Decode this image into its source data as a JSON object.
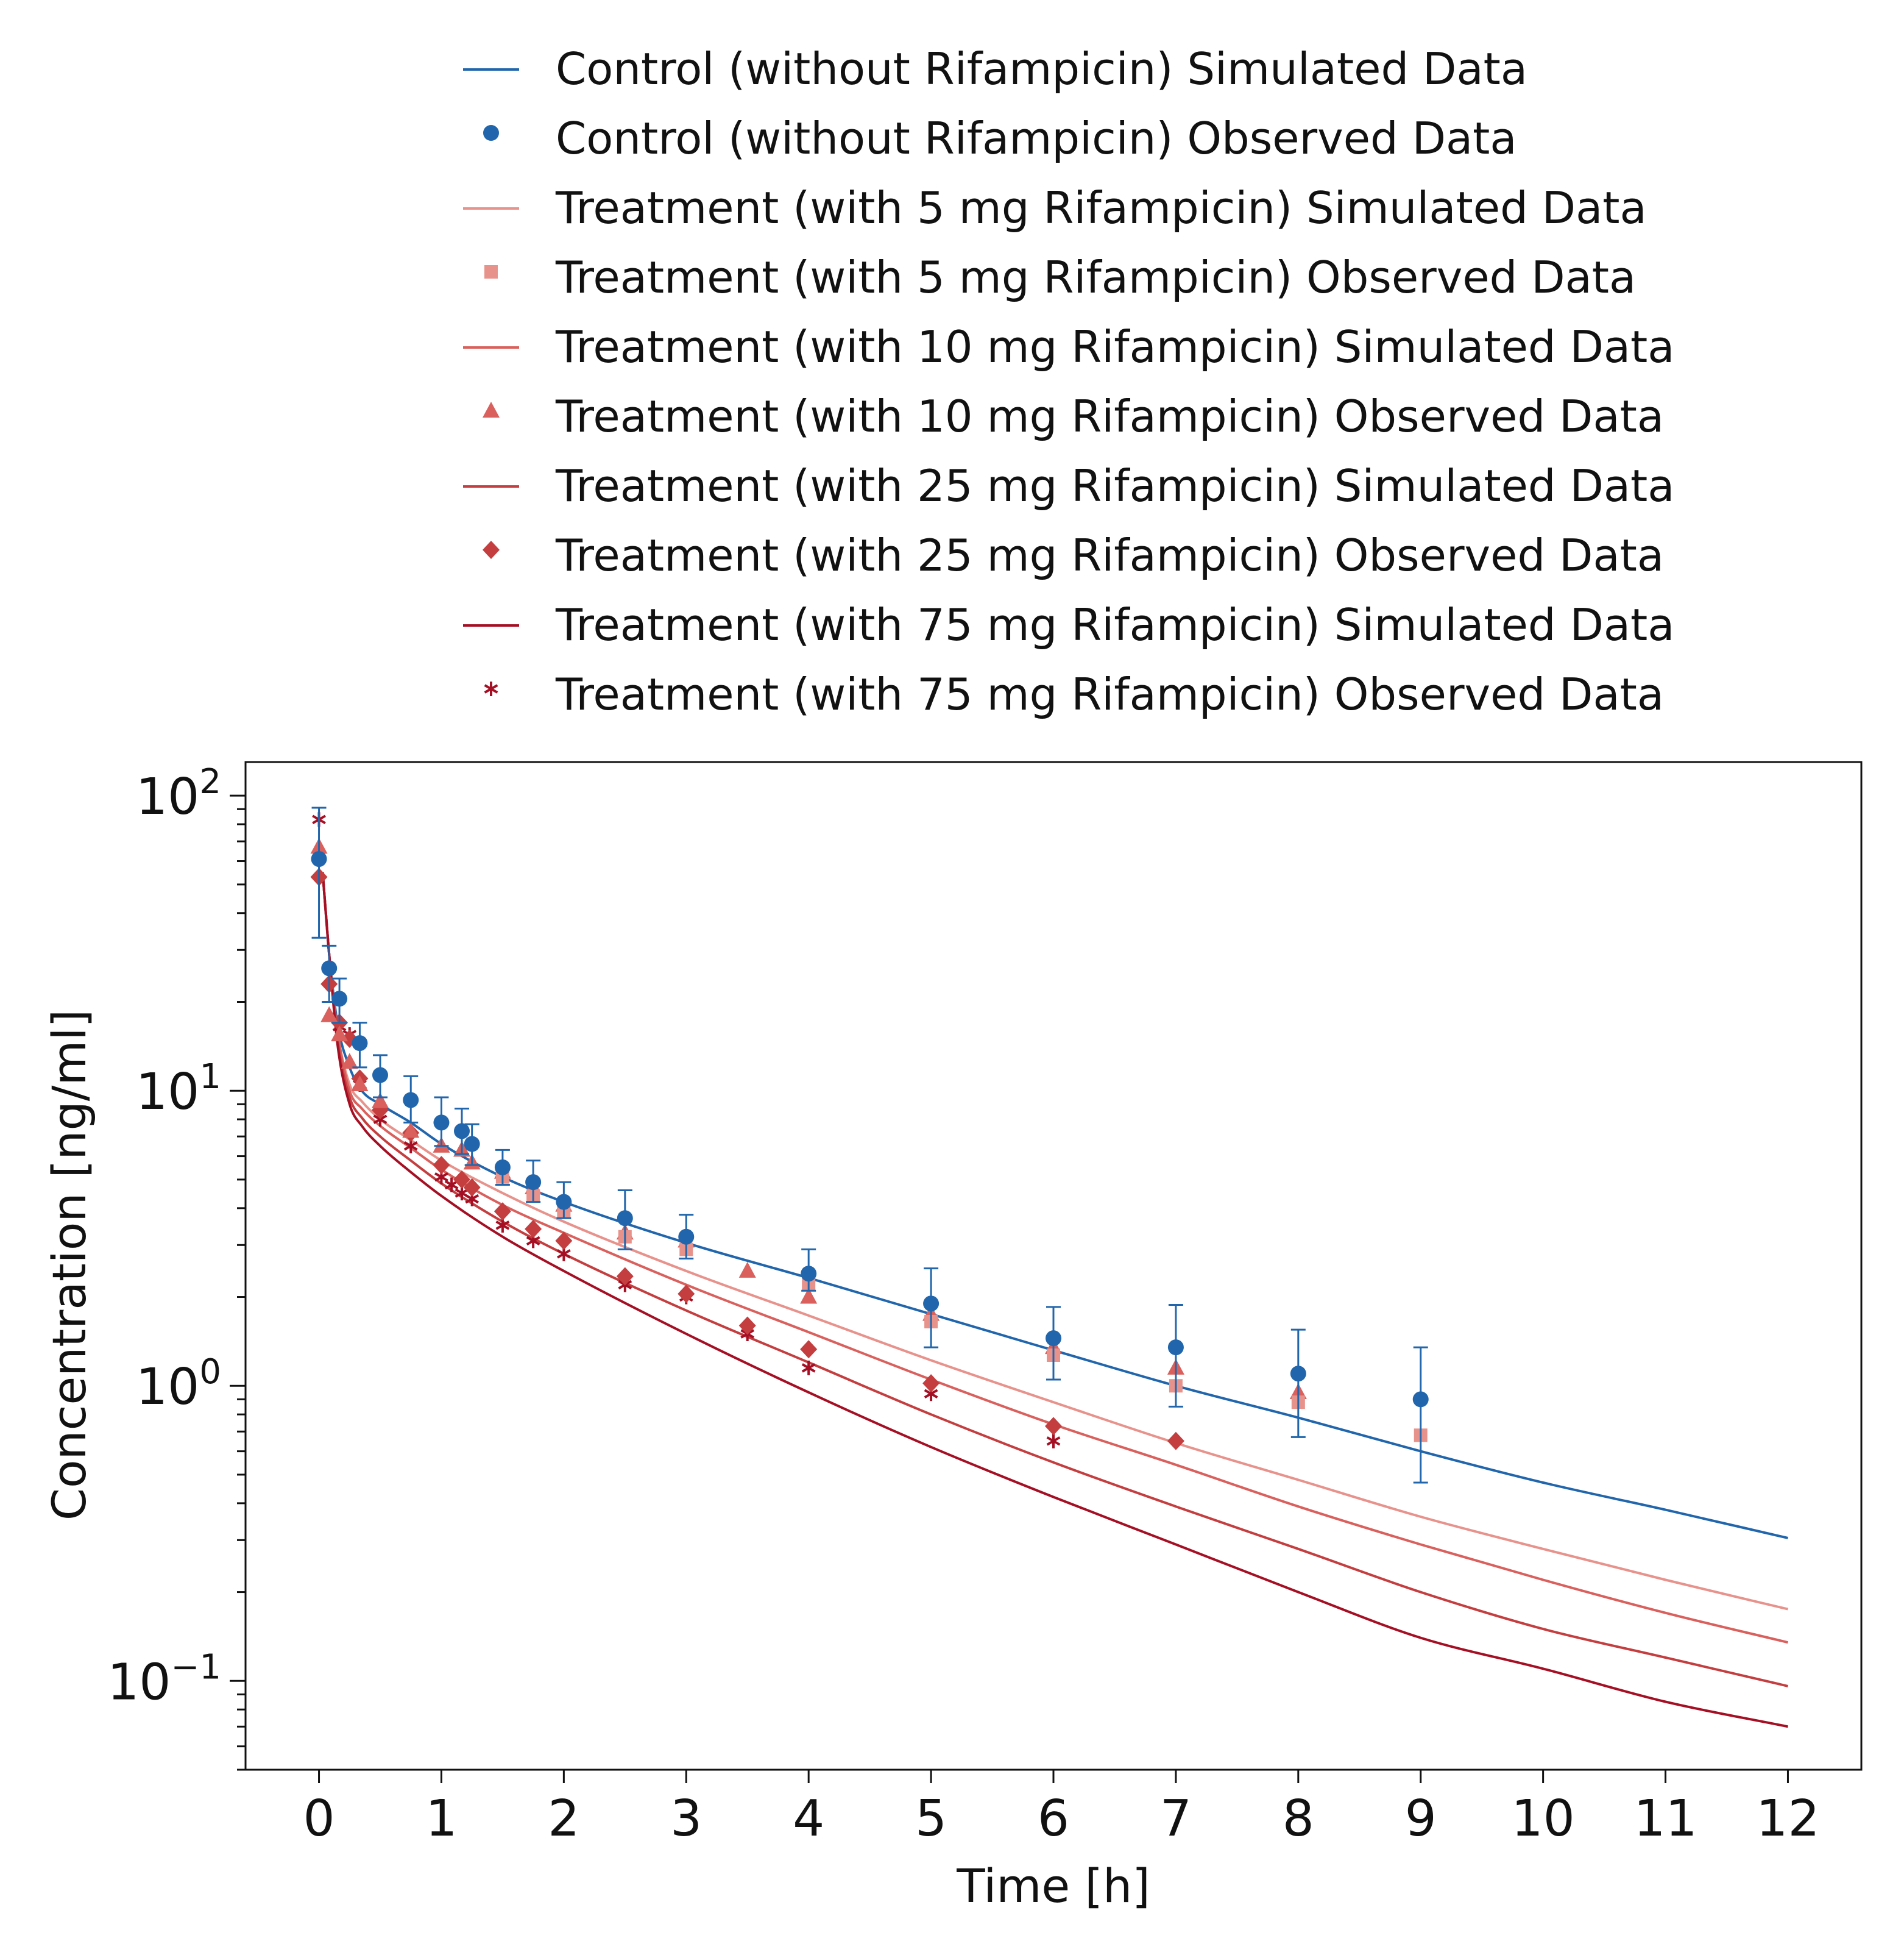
{
  "chart_data": {
    "type": "line",
    "xlabel": "Time [h]",
    "ylabel": "Concentration [ng/ml]",
    "x_scale": "linear",
    "y_scale": "log",
    "xlim": [
      -0.6,
      12.6
    ],
    "ylim": [
      0.05,
      130
    ],
    "x_ticks": [
      "0",
      "1",
      "2",
      "3",
      "4",
      "5",
      "6",
      "7",
      "8",
      "9",
      "10",
      "11",
      "12"
    ],
    "y_ticks": [
      {
        "value": 0.1,
        "base": "10",
        "exp": "−1"
      },
      {
        "value": 1,
        "base": "10",
        "exp": "0"
      },
      {
        "value": 10,
        "base": "10",
        "exp": "1"
      },
      {
        "value": 100,
        "base": "10",
        "exp": "2"
      }
    ],
    "grid": false,
    "legend_position": "top",
    "legend": [
      {
        "label": "Control (without Rifampicin) Simulated Data",
        "kind": "line",
        "color": "#2166ac"
      },
      {
        "label": "Control (without Rifampicin) Observed Data",
        "kind": "circle",
        "color": "#2166ac"
      },
      {
        "label": "Treatment (with 5 mg Rifampicin) Simulated Data",
        "kind": "line",
        "color": "#e8928c"
      },
      {
        "label": "Treatment (with 5 mg Rifampicin) Observed Data",
        "kind": "square",
        "color": "#e8928c"
      },
      {
        "label": "Treatment (with 10 mg Rifampicin) Simulated Data",
        "kind": "line",
        "color": "#d9605c"
      },
      {
        "label": "Treatment (with 10 mg Rifampicin) Observed Data",
        "kind": "triangle",
        "color": "#d9605c"
      },
      {
        "label": "Treatment (with 25 mg Rifampicin) Simulated Data",
        "kind": "line",
        "color": "#c43e3f"
      },
      {
        "label": "Treatment (with 25 mg Rifampicin) Observed Data",
        "kind": "diamond",
        "color": "#c43e3f"
      },
      {
        "label": "Treatment (with 75 mg Rifampicin) Simulated Data",
        "kind": "line",
        "color": "#a50f23"
      },
      {
        "label": "Treatment (with 75 mg Rifampicin) Observed Data",
        "kind": "star",
        "color": "#a50f23"
      }
    ],
    "simulated": [
      {
        "name": "Control (without Rifampicin) Simulated Data",
        "color": "#2166ac",
        "x": [
          0.03,
          0.08,
          0.15,
          0.25,
          0.35,
          0.5,
          0.75,
          1,
          1.5,
          2,
          3,
          4,
          5,
          6,
          7,
          8,
          9,
          10,
          11,
          12
        ],
        "y": [
          55,
          30,
          17,
          12,
          10,
          9,
          7.8,
          6.6,
          5.1,
          4.2,
          3.05,
          2.32,
          1.75,
          1.32,
          1.0,
          0.78,
          0.6,
          0.47,
          0.38,
          0.305
        ]
      },
      {
        "name": "Treatment (with 5 mg Rifampicin) Simulated Data",
        "color": "#e8928c",
        "x": [
          0.03,
          0.08,
          0.15,
          0.25,
          0.35,
          0.5,
          0.75,
          1,
          1.5,
          2,
          3,
          4,
          5,
          6,
          7,
          8,
          9,
          10,
          11,
          12
        ],
        "y": [
          55,
          30,
          16,
          10.5,
          9.2,
          8,
          6.8,
          5.8,
          4.5,
          3.6,
          2.45,
          1.73,
          1.22,
          0.88,
          0.64,
          0.48,
          0.36,
          0.28,
          0.22,
          0.175
        ]
      },
      {
        "name": "Treatment (with 10 mg Rifampicin) Simulated Data",
        "color": "#d9605c",
        "x": [
          0.03,
          0.08,
          0.15,
          0.25,
          0.35,
          0.5,
          0.75,
          1,
          1.5,
          2,
          3,
          4,
          5,
          6,
          7,
          8,
          9,
          10,
          11,
          12
        ],
        "y": [
          55,
          30,
          16,
          10,
          8.7,
          7.6,
          6.4,
          5.4,
          4.1,
          3.3,
          2.2,
          1.52,
          1.05,
          0.74,
          0.54,
          0.39,
          0.29,
          0.22,
          0.17,
          0.135
        ]
      },
      {
        "name": "Treatment (with 25 mg Rifampicin) Simulated Data",
        "color": "#c43e3f",
        "x": [
          0.03,
          0.08,
          0.15,
          0.25,
          0.35,
          0.5,
          0.75,
          1,
          1.5,
          2,
          3,
          4,
          5,
          6,
          7,
          8,
          9,
          10,
          11,
          12
        ],
        "y": [
          55,
          30,
          15,
          9.5,
          8.1,
          7,
          5.8,
          4.85,
          3.6,
          2.8,
          1.8,
          1.2,
          0.8,
          0.55,
          0.39,
          0.28,
          0.2,
          0.15,
          0.12,
          0.096
        ]
      },
      {
        "name": "Treatment (with 75 mg Rifampicin) Simulated Data",
        "color": "#a50f23",
        "x": [
          0.03,
          0.08,
          0.15,
          0.25,
          0.35,
          0.5,
          0.75,
          1,
          1.5,
          2,
          3,
          4,
          5,
          6,
          7,
          8,
          9,
          10,
          11,
          12
        ],
        "y": [
          55,
          30,
          14.5,
          9,
          7.6,
          6.5,
          5.3,
          4.4,
          3.2,
          2.45,
          1.5,
          0.95,
          0.62,
          0.42,
          0.29,
          0.2,
          0.14,
          0.11,
          0.085,
          0.07
        ]
      }
    ],
    "observed": [
      {
        "name": "Control (without Rifampicin) Observed Data",
        "color": "#2166ac",
        "marker": "circle",
        "x": [
          0,
          0.083,
          0.167,
          0.333,
          0.5,
          0.75,
          1,
          1.167,
          1.25,
          1.5,
          1.75,
          2,
          2.5,
          3,
          4,
          5,
          6,
          7,
          8,
          9
        ],
        "y": [
          61,
          26,
          20.5,
          14.5,
          11.3,
          9.3,
          7.8,
          7.3,
          6.6,
          5.5,
          4.9,
          4.2,
          3.7,
          3.2,
          2.4,
          1.9,
          1.45,
          1.35,
          1.1,
          0.9
        ],
        "err_low": [
          33,
          20,
          17,
          12,
          9.5,
          7.8,
          6.5,
          6.1,
          5.6,
          4.8,
          4.2,
          3.7,
          2.9,
          2.7,
          2.1,
          1.35,
          1.05,
          0.85,
          0.67,
          0.47
        ],
        "err_high": [
          91,
          31,
          24,
          17,
          13.2,
          11.2,
          9.5,
          8.7,
          7.7,
          6.3,
          5.8,
          4.9,
          4.6,
          3.8,
          2.9,
          2.5,
          1.85,
          1.88,
          1.55,
          1.35
        ]
      },
      {
        "name": "Treatment (with 5 mg Rifampicin) Observed Data",
        "color": "#e8928c",
        "marker": "square",
        "x": [
          1.5,
          1.75,
          2,
          2.5,
          3,
          4,
          5,
          6,
          7,
          8,
          9
        ],
        "y": [
          5.1,
          4.4,
          3.9,
          3.2,
          2.9,
          2.2,
          1.65,
          1.27,
          1.0,
          0.88,
          0.68
        ]
      },
      {
        "name": "Treatment (with 10 mg Rifampicin) Observed Data",
        "color": "#d9605c",
        "marker": "triangle",
        "x": [
          0,
          0.083,
          0.167,
          0.25,
          0.333,
          0.5,
          0.75,
          1,
          1.167,
          1.25,
          1.5,
          1.75,
          2,
          2.5,
          3,
          3.5,
          4,
          5,
          6,
          7,
          8
        ],
        "y": [
          67,
          18,
          15.5,
          12.5,
          10.5,
          9.2,
          7.3,
          6.5,
          6.3,
          5.7,
          5.3,
          4.7,
          4.1,
          3.3,
          3.1,
          2.45,
          2.0,
          1.75,
          1.35,
          1.15,
          0.95
        ]
      },
      {
        "name": "Treatment (with 25 mg Rifampicin) Observed Data",
        "color": "#c43e3f",
        "marker": "diamond",
        "x": [
          0,
          0.083,
          0.167,
          0.25,
          0.333,
          0.5,
          0.75,
          1,
          1.167,
          1.25,
          1.5,
          1.75,
          2,
          2.5,
          3,
          3.5,
          4,
          5,
          6,
          7
        ],
        "y": [
          53,
          23,
          17,
          15,
          11,
          8.6,
          7.2,
          5.6,
          5.0,
          4.7,
          3.9,
          3.4,
          3.1,
          2.35,
          2.05,
          1.6,
          1.33,
          1.02,
          0.73,
          0.65
        ]
      },
      {
        "name": "Treatment (with 75 mg Rifampicin) Observed Data",
        "color": "#a50f23",
        "marker": "star",
        "x": [
          0,
          0.083,
          0.167,
          0.25,
          0.333,
          0.5,
          0.75,
          1,
          1.083,
          1.167,
          1.25,
          1.5,
          1.75,
          2,
          2.5,
          3,
          3.5,
          4,
          5,
          6
        ],
        "y": [
          83,
          26,
          16.5,
          15.5,
          10.5,
          8.0,
          6.5,
          5.1,
          4.8,
          4.5,
          4.3,
          3.5,
          3.1,
          2.8,
          2.2,
          2.0,
          1.5,
          1.15,
          0.94,
          0.65
        ]
      }
    ]
  }
}
